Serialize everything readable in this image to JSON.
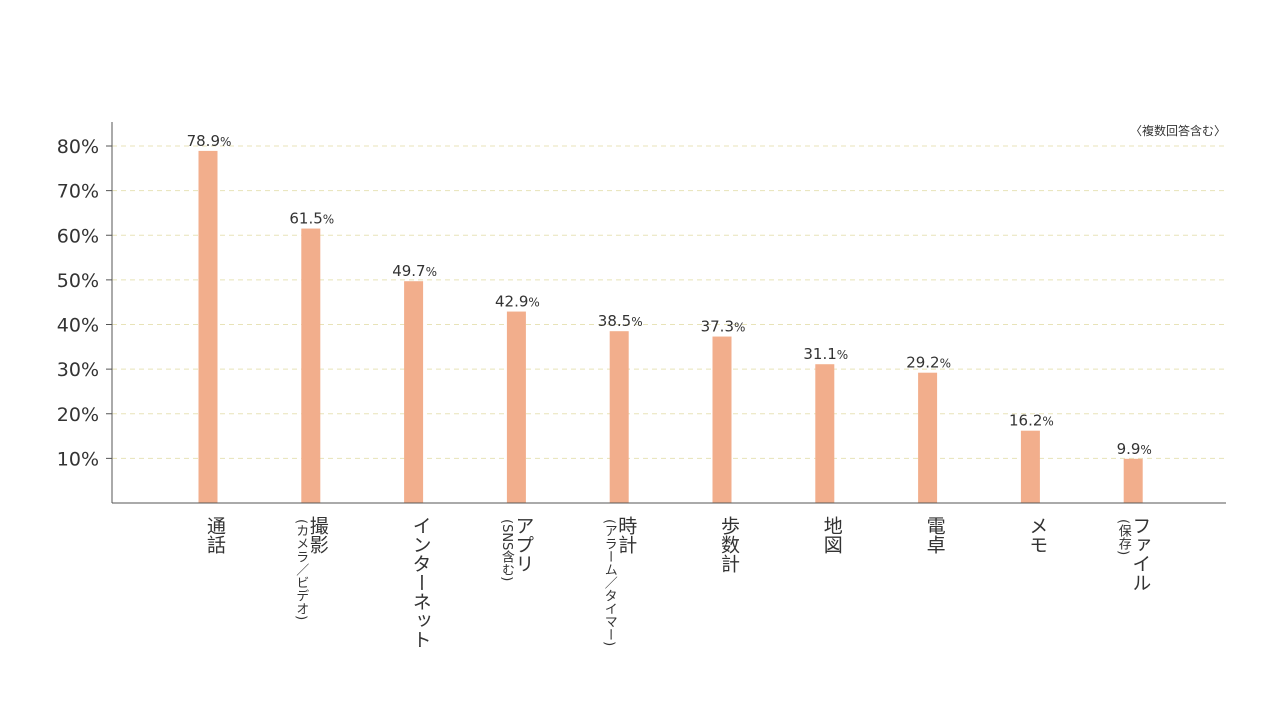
{
  "chart_data": {
    "type": "bar",
    "title": "",
    "xlabel": "",
    "ylabel": "",
    "note": "〈複数回答含む〉",
    "ylim": [
      0,
      85
    ],
    "grid": true,
    "y_ticks": [
      {
        "value": 10,
        "label": "10%"
      },
      {
        "value": 20,
        "label": "20%"
      },
      {
        "value": 30,
        "label": "30%"
      },
      {
        "value": 40,
        "label": "40%"
      },
      {
        "value": 50,
        "label": "50%"
      },
      {
        "value": 60,
        "label": "60%"
      },
      {
        "value": 70,
        "label": "70%"
      },
      {
        "value": 80,
        "label": "80%"
      }
    ],
    "unit": "%",
    "categories": [
      {
        "main": "通話",
        "sub": ""
      },
      {
        "main": "撮影",
        "sub": "(カメラ／ビデオ)"
      },
      {
        "main": "インターネット",
        "sub": ""
      },
      {
        "main": "アプリ",
        "sub": "(SNS含む)"
      },
      {
        "main": "時計",
        "sub": "(アラーム／タイマー)"
      },
      {
        "main": "歩数計",
        "sub": ""
      },
      {
        "main": "地図",
        "sub": ""
      },
      {
        "main": "電卓",
        "sub": ""
      },
      {
        "main": "メモ",
        "sub": ""
      },
      {
        "main": "ファイル",
        "sub": "(保存)"
      }
    ],
    "values": [
      78.9,
      61.5,
      49.7,
      42.9,
      38.5,
      37.3,
      31.1,
      29.2,
      16.2,
      9.9
    ],
    "value_labels": [
      "78.9",
      "61.5",
      "49.7",
      "42.9",
      "38.5",
      "37.3",
      "31.1",
      "29.2",
      "16.2",
      "9.9"
    ],
    "colors": {
      "bar": "#f2ae8c",
      "grid": "#e8e3b8",
      "axis": "#555555",
      "text": "#333333"
    }
  }
}
